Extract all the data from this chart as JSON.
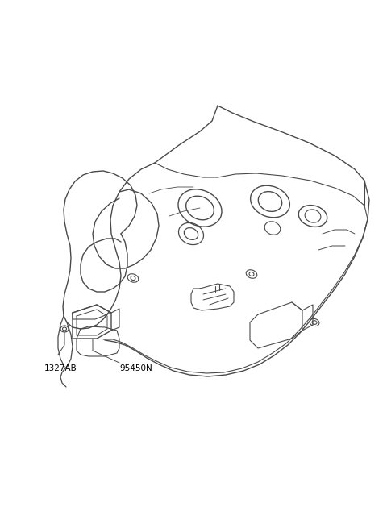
{
  "bg_color": "#ffffff",
  "line_color": "#4a4a4a",
  "line_width": 1.0,
  "label_95450N": "95450N",
  "label_1327AB": "1327AB",
  "fig_width": 4.8,
  "fig_height": 6.55,
  "dpi": 100
}
